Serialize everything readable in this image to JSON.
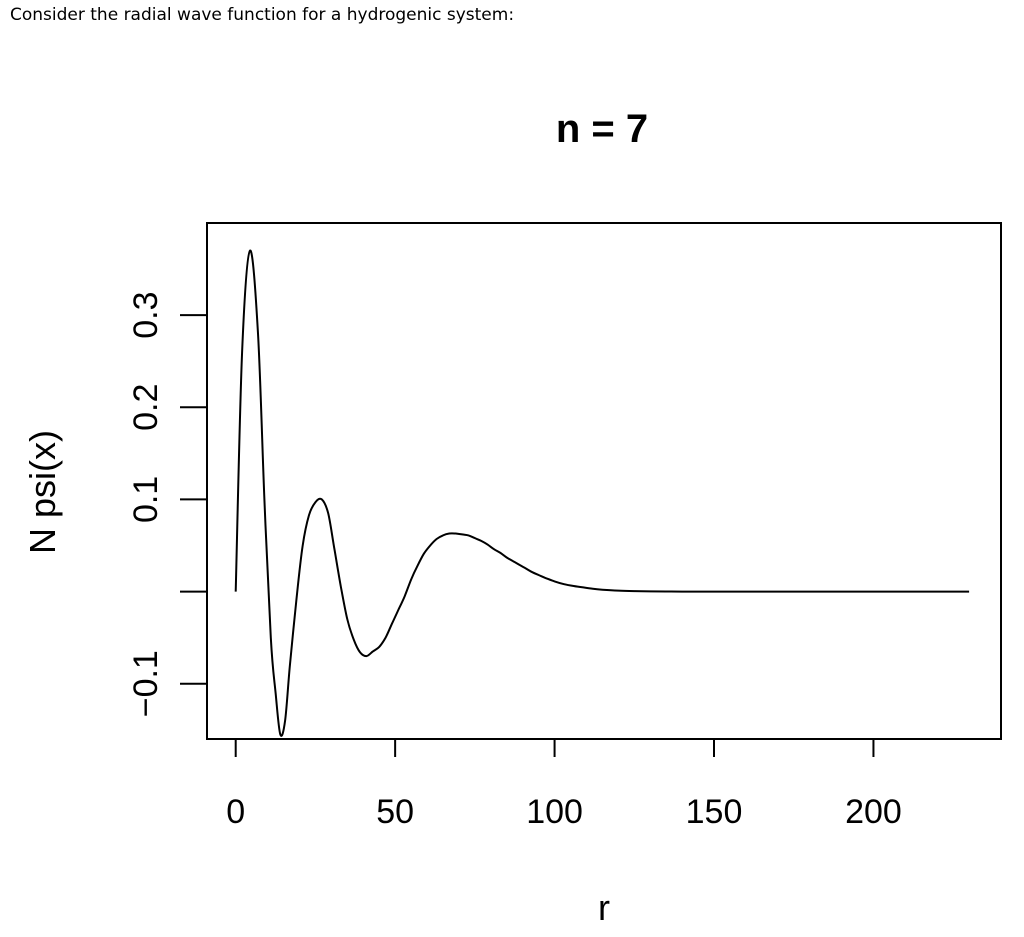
{
  "question_text": "Consider the radial wave function for a hydrogenic system:",
  "chart_data": {
    "type": "line",
    "title": "n = 7",
    "xlabel": "r",
    "ylabel": "N psi(x)",
    "xlim": [
      -9,
      240
    ],
    "ylim": [
      -0.16,
      0.4
    ],
    "x_ticks": [
      {
        "value": 0,
        "label": "0"
      },
      {
        "value": 50,
        "label": "50"
      },
      {
        "value": 100,
        "label": "100"
      },
      {
        "value": 150,
        "label": "150"
      },
      {
        "value": 200,
        "label": "200"
      }
    ],
    "y_ticks": [
      {
        "value": -0.1,
        "label": "−0.1"
      },
      {
        "value": 0.0,
        "label": ""
      },
      {
        "value": 0.1,
        "label": "0.1"
      },
      {
        "value": 0.2,
        "label": "0.2"
      },
      {
        "value": 0.3,
        "label": "0.3"
      }
    ],
    "grid": false,
    "legend": "none",
    "line_color": "#000000",
    "series": [
      {
        "x": [
          0,
          2,
          4.5,
          7,
          9,
          11,
          12.5,
          14,
          15.5,
          17,
          19,
          21,
          23,
          25,
          27,
          29,
          31,
          33,
          35,
          37,
          39,
          41,
          43,
          45,
          47,
          49,
          51,
          53,
          55,
          57,
          59,
          61,
          63,
          65,
          67,
          69,
          71,
          73,
          75,
          77,
          79,
          81,
          83,
          85,
          87,
          89,
          91,
          93,
          95,
          97,
          100,
          103,
          106,
          109,
          112,
          115,
          120,
          125,
          130,
          135,
          140,
          150,
          160,
          170,
          180,
          190,
          200,
          210,
          220,
          230
        ],
        "y": [
          0,
          0.26,
          0.37,
          0.28,
          0.1,
          -0.05,
          -0.11,
          -0.155,
          -0.14,
          -0.08,
          -0.01,
          0.05,
          0.083,
          0.097,
          0.1,
          0.085,
          0.045,
          0.005,
          -0.03,
          -0.052,
          -0.066,
          -0.07,
          -0.065,
          -0.06,
          -0.05,
          -0.035,
          -0.02,
          -0.005,
          0.013,
          0.028,
          0.041,
          0.05,
          0.057,
          0.061,
          0.063,
          0.063,
          0.062,
          0.061,
          0.058,
          0.055,
          0.051,
          0.046,
          0.042,
          0.037,
          0.033,
          0.029,
          0.025,
          0.021,
          0.018,
          0.015,
          0.011,
          0.008,
          0.006,
          0.0045,
          0.003,
          0.002,
          0.001,
          0.0005,
          0.0002,
          0.0001,
          0,
          0,
          0,
          0,
          0,
          0,
          0,
          0,
          0,
          0
        ]
      }
    ]
  }
}
